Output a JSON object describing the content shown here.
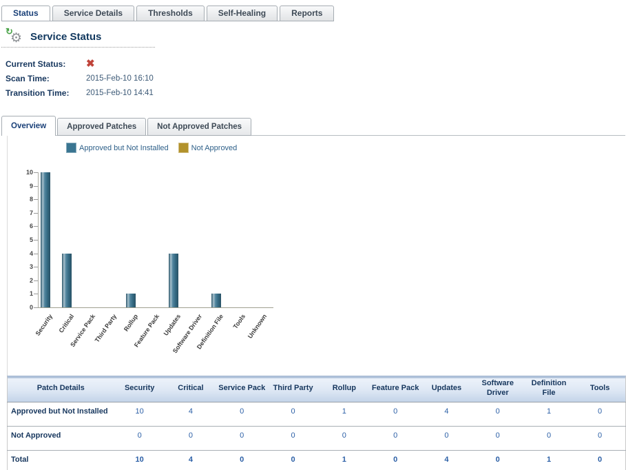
{
  "top_tabs": {
    "items": [
      {
        "label": "Status",
        "active": true
      },
      {
        "label": "Service Details",
        "active": false
      },
      {
        "label": "Thresholds",
        "active": false
      },
      {
        "label": "Self-Healing",
        "active": false
      },
      {
        "label": "Reports",
        "active": false
      }
    ]
  },
  "header": {
    "title": "Service Status",
    "icon": "services-gear-icon"
  },
  "status_fields": {
    "current_status_label": "Current Status:",
    "current_status_icon": "red-x-error-icon",
    "scan_time_label": "Scan Time:",
    "scan_time_value": "2015-Feb-10 16:10",
    "transition_time_label": "Transition Time:",
    "transition_time_value": "2015-Feb-10 14:41"
  },
  "inner_tabs": {
    "items": [
      {
        "label": "Overview",
        "active": true
      },
      {
        "label": "Approved Patches",
        "active": false
      },
      {
        "label": "Not Approved Patches",
        "active": false
      }
    ]
  },
  "colors": {
    "accent_navy": "#16365d",
    "link_blue": "#2b5fa6",
    "error_red": "#c0443a",
    "bar_teal": "#3a7591",
    "bar_gold": "#b2922c"
  },
  "chart_data": {
    "type": "bar",
    "title": "",
    "xlabel": "",
    "ylabel": "",
    "categories": [
      "Security",
      "Critical",
      "Service Pack",
      "Third Party",
      "Rollup",
      "Feature Pack",
      "Updates",
      "Software Driver",
      "Definition File",
      "Tools",
      "Unknown"
    ],
    "series": [
      {
        "name": "Approved but Not Installed",
        "color": "#3a7591",
        "values": [
          10,
          4,
          0,
          0,
          1,
          0,
          4,
          0,
          1,
          0,
          0
        ]
      },
      {
        "name": "Not Approved",
        "color": "#b2922c",
        "values": [
          0,
          0,
          0,
          0,
          0,
          0,
          0,
          0,
          0,
          0,
          0
        ]
      }
    ],
    "ylim": [
      0,
      10
    ],
    "yticks": [
      0,
      1,
      2,
      3,
      4,
      5,
      6,
      7,
      8,
      9,
      10
    ],
    "grid": false,
    "legend_position": "top"
  },
  "table": {
    "columns": [
      "Patch Details",
      "Security",
      "Critical",
      "Service Pack",
      "Third Party",
      "Rollup",
      "Feature Pack",
      "Updates",
      "Software Driver",
      "Definition File",
      "Tools"
    ],
    "rows": [
      {
        "label": "Approved but Not Installed",
        "values": [
          "10",
          "4",
          "0",
          "0",
          "1",
          "0",
          "4",
          "0",
          "1",
          "0"
        ],
        "total": false
      },
      {
        "label": "Not Approved",
        "values": [
          "0",
          "0",
          "0",
          "0",
          "0",
          "0",
          "0",
          "0",
          "0",
          "0"
        ],
        "total": false
      },
      {
        "label": "Total",
        "values": [
          "10",
          "4",
          "0",
          "0",
          "1",
          "0",
          "4",
          "0",
          "1",
          "0"
        ],
        "total": true
      }
    ]
  }
}
